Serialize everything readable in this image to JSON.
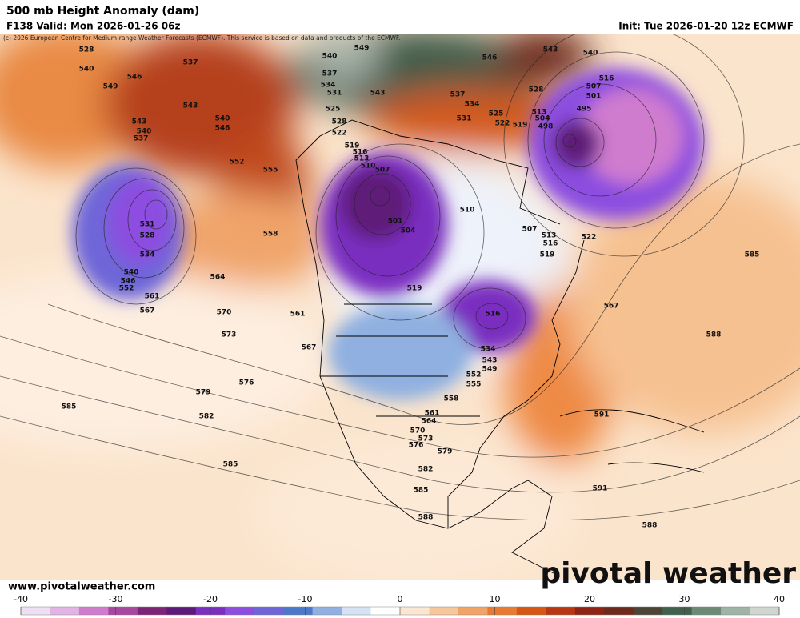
{
  "header": {
    "title": "500 mb Height Anomaly (dam)",
    "subtitle": "F138 Valid: Mon 2026-01-26 06z",
    "init": "Init: Tue 2026-01-20 12z ECMWF",
    "credit": "(c) 2026 European Centre for Medium-range Weather Forecasts (ECMWF). This service is based on data and products of the ECMWF."
  },
  "footer": {
    "website": "www.pivotalweather.com",
    "logo": "pivotal weather"
  },
  "colorbar": {
    "range": [
      -40,
      40
    ],
    "ticks": [
      -40,
      -30,
      -20,
      -10,
      0,
      10,
      20,
      30,
      40
    ],
    "colors": [
      "#ece0f2",
      "#e2b4e6",
      "#cf7ccf",
      "#a8479f",
      "#7d2478",
      "#5e1a78",
      "#7a2fc0",
      "#8c4de0",
      "#6e66d8",
      "#4c78cc",
      "#8fb0e0",
      "#d5e2f4",
      "#ffffff",
      "#fbe6d2",
      "#f7c79c",
      "#f2a366",
      "#ea7a32",
      "#d85614",
      "#b93612",
      "#8f2414",
      "#6e2b1c",
      "#4e4436",
      "#41604d",
      "#6c8a76",
      "#9fb3a6",
      "#cfd6d0"
    ]
  },
  "map": {
    "contour_labels": [
      "528",
      "540",
      "549",
      "546",
      "537",
      "543",
      "543",
      "540",
      "537",
      "540",
      "546",
      "552",
      "555",
      "531",
      "528",
      "534",
      "540",
      "546",
      "552",
      "561",
      "567",
      "570",
      "573",
      "564",
      "558",
      "561",
      "567",
      "576",
      "579",
      "582",
      "585",
      "585",
      "540",
      "549",
      "537",
      "534",
      "531",
      "528",
      "525",
      "522",
      "543",
      "537",
      "534",
      "531",
      "525",
      "522",
      "519",
      "528",
      "513",
      "504",
      "498",
      "495",
      "501",
      "507",
      "516",
      "543",
      "546",
      "540",
      "519",
      "516",
      "513",
      "510",
      "507",
      "501",
      "504",
      "510",
      "507",
      "513",
      "516",
      "519",
      "522",
      "519",
      "516",
      "534",
      "543",
      "549",
      "552",
      "555",
      "558",
      "561",
      "564",
      "570",
      "573",
      "576",
      "579",
      "582",
      "585",
      "588",
      "591",
      "591",
      "588",
      "588",
      "567",
      "585"
    ]
  }
}
